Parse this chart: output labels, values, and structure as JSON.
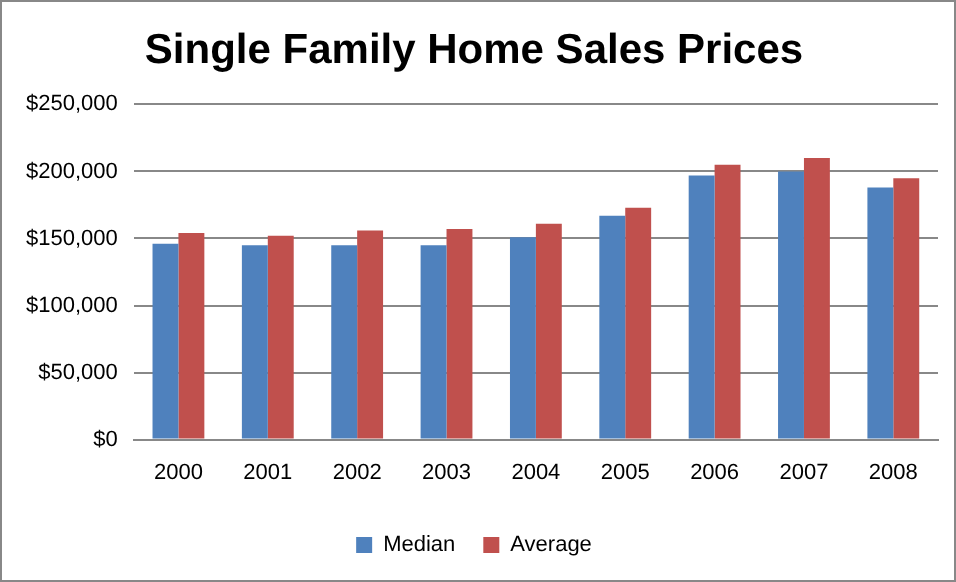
{
  "chart_data": {
    "type": "bar",
    "title": "Single Family Home Sales Prices",
    "categories": [
      "2000",
      "2001",
      "2002",
      "2003",
      "2004",
      "2005",
      "2006",
      "2007",
      "2008"
    ],
    "series": [
      {
        "name": "Median",
        "color": "#4f81bd",
        "values": [
          146000,
          145000,
          145000,
          145000,
          151000,
          167000,
          197000,
          200000,
          188000
        ]
      },
      {
        "name": "Average",
        "color": "#c0504d",
        "values": [
          154000,
          152000,
          156000,
          157000,
          161000,
          173000,
          205000,
          210000,
          195000
        ]
      }
    ],
    "ylim": [
      0,
      250000
    ],
    "yticks": [
      {
        "value": 0,
        "label": "$0"
      },
      {
        "value": 50000,
        "label": "$50,000"
      },
      {
        "value": 100000,
        "label": "$100,000"
      },
      {
        "value": 150000,
        "label": "$150,000"
      },
      {
        "value": 200000,
        "label": "$200,000"
      },
      {
        "value": 250000,
        "label": "$250,000"
      }
    ],
    "grid": "y",
    "legend": "bottom"
  }
}
